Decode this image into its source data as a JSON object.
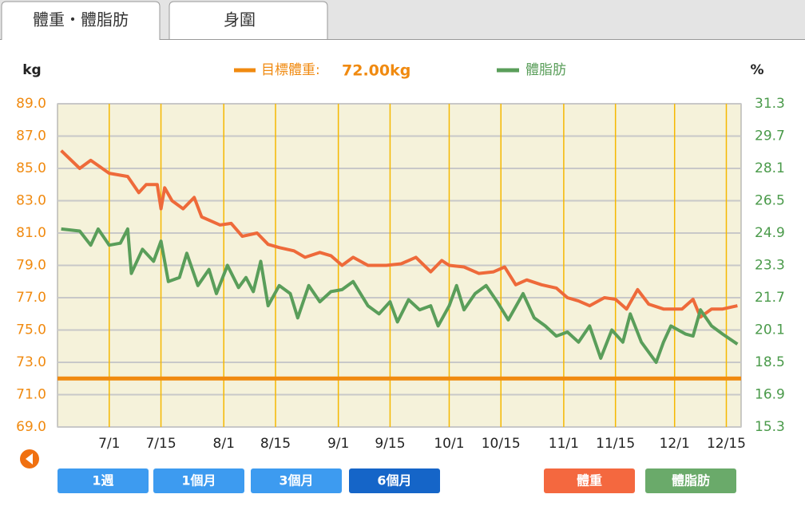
{
  "tabs": [
    "體重・體脂肪",
    "身圍"
  ],
  "buttons": [
    "1週",
    "1個月",
    "3個月",
    "6個月",
    "體重",
    "體脂肪"
  ],
  "chart_data": {
    "type": "line",
    "ylabel": "kg",
    "y2label": "%",
    "target": {
      "label": "目標體重:",
      "value": 72,
      "value_label": "72.00kg",
      "color": "#f08a10"
    },
    "xlim": [
      -14,
      171
    ],
    "xticks": [
      {
        "value": 0,
        "label": "7/1"
      },
      {
        "value": 14,
        "label": "7/15"
      },
      {
        "value": 31,
        "label": "8/1"
      },
      {
        "value": 45,
        "label": "8/15"
      },
      {
        "value": 62,
        "label": "9/1"
      },
      {
        "value": 76,
        "label": "9/15"
      },
      {
        "value": 92,
        "label": "10/1"
      },
      {
        "value": 106,
        "label": "10/15"
      },
      {
        "value": 123,
        "label": "11/1"
      },
      {
        "value": 137,
        "label": "11/15"
      },
      {
        "value": 153,
        "label": "12/1"
      },
      {
        "value": 167,
        "label": "12/15"
      }
    ],
    "ylim": [
      69,
      89
    ],
    "yticks": [
      {
        "value": 69,
        "label": "69.0"
      },
      {
        "value": 71,
        "label": "71.0"
      },
      {
        "value": 73,
        "label": "73.0"
      },
      {
        "value": 75,
        "label": "75.0"
      },
      {
        "value": 77,
        "label": "77.0"
      },
      {
        "value": 79,
        "label": "79.0"
      },
      {
        "value": 81,
        "label": "81.0"
      },
      {
        "value": 83,
        "label": "83.0"
      },
      {
        "value": 85,
        "label": "85.0"
      },
      {
        "value": 87,
        "label": "87.0"
      },
      {
        "value": 89,
        "label": "89.0"
      }
    ],
    "y2lim": [
      15.3,
      31.3
    ],
    "y2ticks": [
      15.3,
      16.9,
      18.5,
      20.1,
      21.7,
      23.3,
      24.9,
      26.5,
      28.1,
      29.7,
      31.3
    ],
    "grid": true,
    "series": [
      {
        "color": "#ee6a3a",
        "axis": "y",
        "x": [
          -13,
          -8,
          -5,
          0,
          5,
          8,
          10,
          13,
          14,
          15,
          17,
          20,
          23,
          25,
          30,
          33,
          36,
          40,
          43,
          46,
          50,
          53,
          57,
          60,
          63,
          66,
          70,
          75,
          79,
          83,
          87,
          90,
          92,
          96,
          100,
          104,
          107,
          110,
          113,
          117,
          121,
          124,
          127,
          130,
          134,
          137,
          140,
          143,
          146,
          150,
          155,
          158,
          160,
          163,
          166,
          170
        ],
        "values": [
          86.1,
          85.0,
          85.5,
          84.7,
          84.5,
          83.5,
          84.0,
          84.0,
          82.5,
          83.8,
          83.0,
          82.5,
          83.2,
          82.0,
          81.5,
          81.6,
          80.8,
          81.0,
          80.3,
          80.1,
          79.9,
          79.5,
          79.8,
          79.6,
          79.0,
          79.5,
          79.0,
          79.0,
          79.1,
          79.5,
          78.6,
          79.3,
          79.0,
          78.9,
          78.5,
          78.6,
          78.9,
          77.8,
          78.1,
          77.8,
          77.6,
          77.0,
          76.8,
          76.5,
          77.0,
          76.9,
          76.3,
          77.5,
          76.6,
          76.3,
          76.3,
          76.9,
          75.8,
          76.3,
          76.3,
          76.5
        ]
      },
      {
        "name": "體脂肪",
        "color": "#5a9e5a",
        "axis": "y2",
        "x": [
          -13,
          -8,
          -5,
          -3,
          0,
          3,
          5,
          6,
          9,
          12,
          14,
          16,
          19,
          21,
          24,
          27,
          29,
          32,
          35,
          37,
          39,
          41,
          43,
          46,
          49,
          51,
          54,
          57,
          60,
          63,
          66,
          70,
          73,
          76,
          78,
          81,
          84,
          87,
          89,
          92,
          94,
          96,
          99,
          102,
          105,
          108,
          112,
          115,
          118,
          121,
          124,
          127,
          130,
          133,
          136,
          139,
          141,
          144,
          148,
          150,
          152,
          156,
          158,
          160,
          163,
          166,
          170
        ],
        "values": [
          25.1,
          25.0,
          24.3,
          25.1,
          24.3,
          24.4,
          25.1,
          22.9,
          24.1,
          23.5,
          24.5,
          22.5,
          22.7,
          23.9,
          22.3,
          23.1,
          21.9,
          23.3,
          22.2,
          22.7,
          22.0,
          23.5,
          21.3,
          22.3,
          21.9,
          20.7,
          22.3,
          21.5,
          22.0,
          22.1,
          22.5,
          21.3,
          20.9,
          21.5,
          20.5,
          21.6,
          21.1,
          21.3,
          20.3,
          21.3,
          22.3,
          21.1,
          21.9,
          22.3,
          21.5,
          20.6,
          21.9,
          20.7,
          20.3,
          19.8,
          20.0,
          19.5,
          20.3,
          18.7,
          20.1,
          19.5,
          20.9,
          19.5,
          18.5,
          19.5,
          20.3,
          19.9,
          19.8,
          21.1,
          20.3,
          19.9,
          19.4
        ]
      }
    ]
  }
}
